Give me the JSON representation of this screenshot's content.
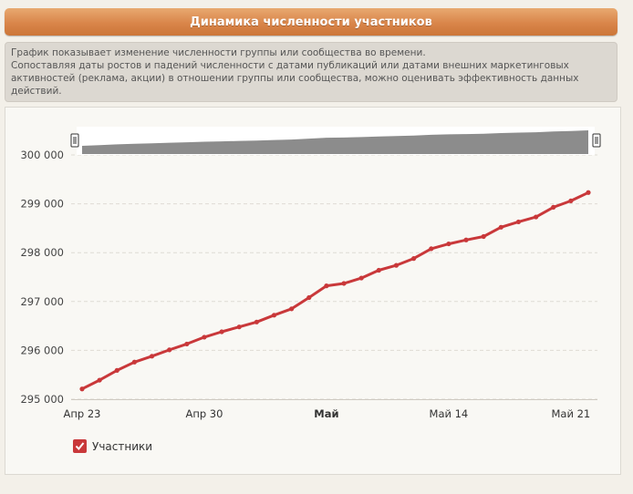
{
  "header": {
    "title": "Динамика численности участников"
  },
  "description": {
    "line1": "График показывает изменение численности группы или сообщества во времени.",
    "line2": "Сопоставляя даты ростов и падений численности с датами публикаций или датами внешних маркетинговых активностей (реклама, акции) в отношении группы или сообщества, можно оценивать эффективность данных действий."
  },
  "legend": {
    "label": "Участники",
    "checked": true
  },
  "colors": {
    "line": "#c9383a",
    "navigator": "#8c8c8c",
    "header": "#d9854a"
  },
  "chart_data": {
    "type": "line",
    "title": "",
    "xlabel": "",
    "ylabel": "",
    "ylim": [
      295000,
      300000
    ],
    "y_ticks": [
      "295 000",
      "296 000",
      "297 000",
      "298 000",
      "299 000",
      "300 000"
    ],
    "x_ticks": [
      {
        "label": "Апр 23",
        "x": 0,
        "bold": false
      },
      {
        "label": "Апр 30",
        "x": 7,
        "bold": false
      },
      {
        "label": "Май",
        "x": 14,
        "bold": true
      },
      {
        "label": "Май 14",
        "x": 21,
        "bold": false
      },
      {
        "label": "Май 21",
        "x": 28,
        "bold": false
      }
    ],
    "grid": "horizontal dashed",
    "legend_position": "bottom-left",
    "series": [
      {
        "name": "Участники",
        "x": [
          0,
          1,
          2,
          3,
          4,
          5,
          6,
          7,
          8,
          9,
          10,
          11,
          12,
          13,
          14,
          15,
          16,
          17,
          18,
          19,
          20,
          21,
          22,
          23,
          24,
          25,
          26,
          27,
          28,
          29
        ],
        "values": [
          295210,
          295390,
          295590,
          295760,
          295880,
          296010,
          296130,
          296270,
          296380,
          296480,
          296580,
          296720,
          296850,
          297080,
          297320,
          297370,
          297480,
          297640,
          297740,
          297880,
          298080,
          298180,
          298260,
          298330,
          298520,
          298630,
          298730,
          298930,
          299060,
          299230
        ]
      }
    ]
  }
}
